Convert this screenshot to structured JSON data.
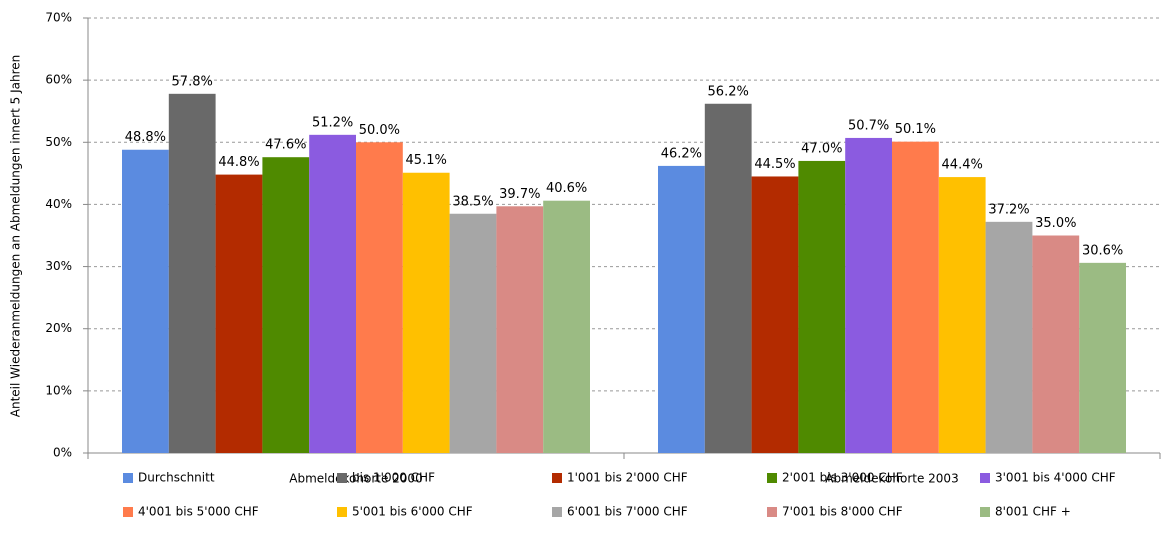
{
  "chart_data": {
    "type": "bar",
    "y_label": "Anteil Wiederanmeldungen an Abmeldungen innert 5 Jahren",
    "categories": [
      "Abmeldekohorte 2000",
      "Abmeldekohorte 2003"
    ],
    "series": [
      {
        "name": "Durchschnitt",
        "color": "#5b8be0",
        "values": [
          48.8,
          46.2
        ],
        "value_labels": [
          "48.8%",
          "46.2%"
        ]
      },
      {
        "name": "bis 1'000 CHF",
        "color": "#696969",
        "values": [
          57.8,
          56.2
        ],
        "value_labels": [
          "57.8%",
          "56.2%"
        ]
      },
      {
        "name": "1'001 bis 2'000 CHF",
        "color": "#b32b00",
        "values": [
          44.8,
          44.5
        ],
        "value_labels": [
          "44.8%",
          "44.5%"
        ]
      },
      {
        "name": "2'001 bis 3'000 CHF",
        "color": "#4f8a00",
        "values": [
          47.6,
          47.0
        ],
        "value_labels": [
          "47.6%",
          "47.0%"
        ]
      },
      {
        "name": "3'001 bis 4'000 CHF",
        "color": "#8b5be0",
        "values": [
          51.2,
          50.7
        ],
        "value_labels": [
          "51.2%",
          "50.7%"
        ]
      },
      {
        "name": "4'001 bis 5'000 CHF",
        "color": "#ff7b4c",
        "values": [
          50.0,
          50.1
        ],
        "value_labels": [
          "50.0%",
          "50.1%"
        ]
      },
      {
        "name": "5'001 bis 6'000 CHF",
        "color": "#ffc000",
        "values": [
          45.1,
          44.4
        ],
        "value_labels": [
          "45.1%",
          "44.4%"
        ]
      },
      {
        "name": "6'001 bis 7'000 CHF",
        "color": "#a6a6a6",
        "values": [
          38.5,
          37.2
        ],
        "value_labels": [
          "38.5%",
          "37.2%"
        ]
      },
      {
        "name": "7'001 bis 8'000 CHF",
        "color": "#d98a85",
        "values": [
          39.7,
          35.0
        ],
        "value_labels": [
          "39.7%",
          "35.0%"
        ]
      },
      {
        "name": "8'001 CHF +",
        "color": "#9bbb83",
        "values": [
          40.6,
          30.6
        ],
        "value_labels": [
          "40.6%",
          "30.6%"
        ]
      }
    ],
    "ylim": [
      0,
      70
    ],
    "yticks": [
      {
        "value": 0,
        "label": "0%"
      },
      {
        "value": 10,
        "label": "10%"
      },
      {
        "value": 20,
        "label": "20%"
      },
      {
        "value": 30,
        "label": "30%"
      },
      {
        "value": 40,
        "label": "40%"
      },
      {
        "value": 50,
        "label": "50%"
      },
      {
        "value": 60,
        "label": "60%"
      },
      {
        "value": 70,
        "label": "70%"
      }
    ],
    "grid": true
  }
}
